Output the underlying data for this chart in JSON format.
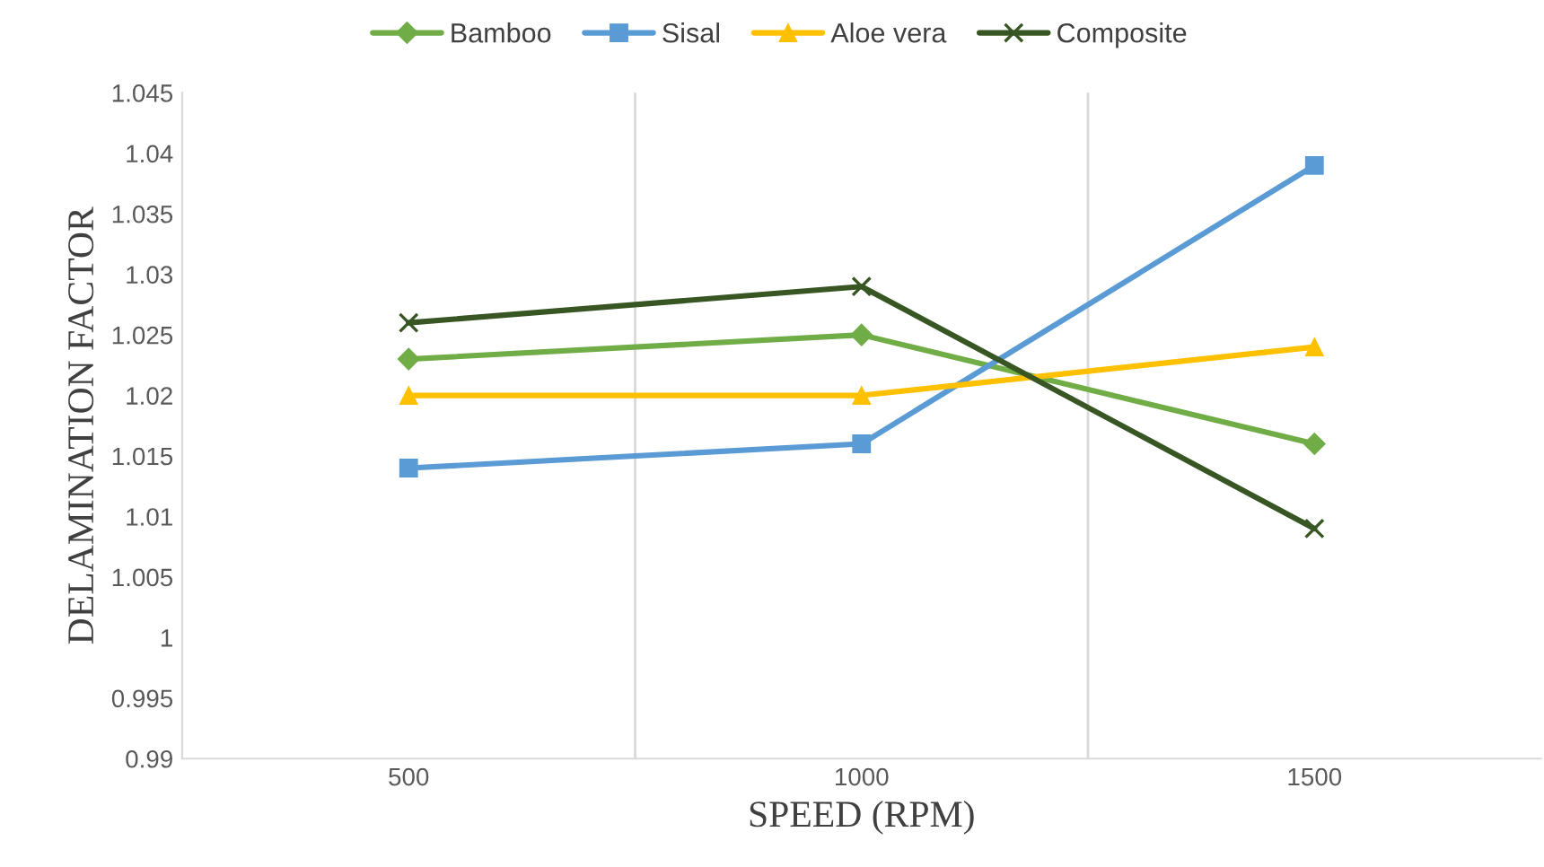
{
  "chart_data": {
    "type": "line",
    "xlabel": "SPEED (RPM)",
    "ylabel": "DELAMINATION FACTOR",
    "categories": [
      "500",
      "1000",
      "1500"
    ],
    "series": [
      {
        "name": "Bamboo",
        "color": "#70ad47",
        "marker": "diamond",
        "values": [
          1.023,
          1.025,
          1.016
        ]
      },
      {
        "name": "Sisal",
        "color": "#5b9bd5",
        "marker": "square",
        "values": [
          1.014,
          1.016,
          1.039
        ]
      },
      {
        "name": "Aloe vera",
        "color": "#ffc000",
        "marker": "triangle",
        "values": [
          1.02,
          1.02,
          1.024
        ]
      },
      {
        "name": "Composite",
        "color": "#375623",
        "marker": "cross",
        "values": [
          1.026,
          1.029,
          1.009
        ]
      }
    ],
    "ylim": [
      0.99,
      1.045
    ],
    "yticks": [
      0.99,
      0.995,
      1,
      1.005,
      1.01,
      1.015,
      1.02,
      1.025,
      1.03,
      1.035,
      1.04,
      1.045
    ],
    "grid": "x",
    "legend": "top",
    "line_style": "solid"
  }
}
